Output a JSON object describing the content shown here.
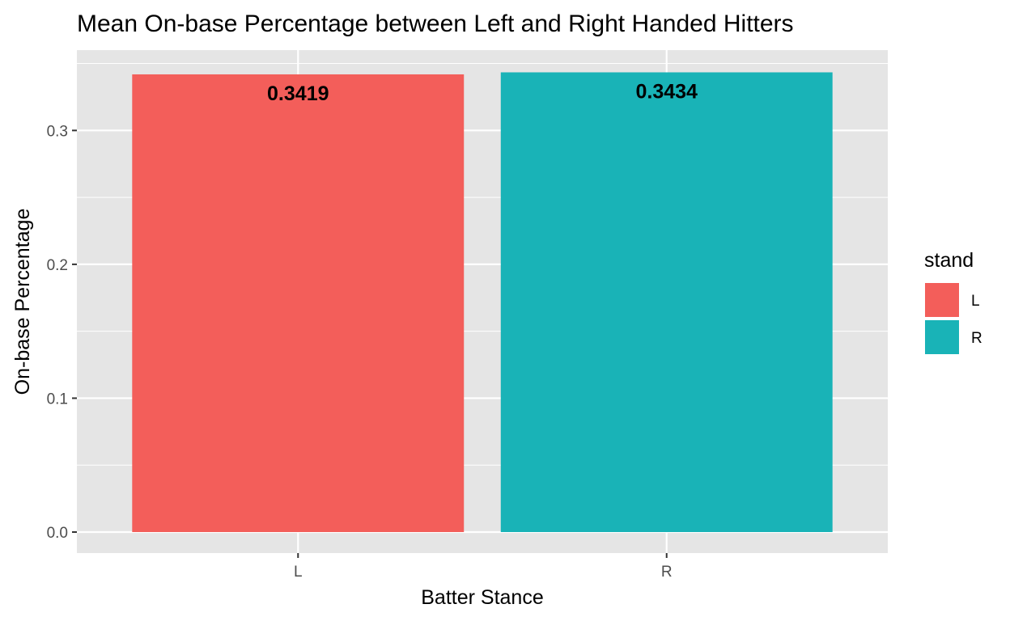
{
  "chart_data": {
    "type": "bar",
    "title": "Mean On-base Percentage between Left and Right Handed Hitters",
    "xlabel": "Batter Stance",
    "ylabel": "On-base Percentage",
    "categories": [
      "L",
      "R"
    ],
    "values": [
      0.3419,
      0.3434
    ],
    "data_labels": [
      "0.3419",
      "0.3434"
    ],
    "colors": [
      "#F35E5A",
      "#19B3B7"
    ],
    "ylim": [
      -0.0157,
      0.36
    ],
    "y_ticks": [
      0.0,
      0.1,
      0.2,
      0.3
    ],
    "y_tick_labels": [
      "0.0",
      "0.1",
      "0.2",
      "0.3"
    ],
    "grid": true,
    "panel_background": "#E5E5E5",
    "legend": {
      "title": "stand",
      "position": "right",
      "entries": [
        {
          "label": "L",
          "color": "#F35E5A"
        },
        {
          "label": "R",
          "color": "#19B3B7"
        }
      ]
    }
  }
}
